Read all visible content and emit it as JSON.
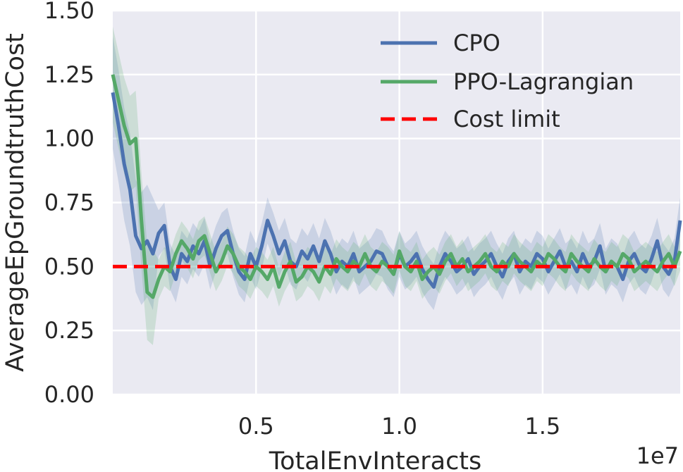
{
  "chart_data": {
    "type": "line",
    "title": "",
    "xlabel": "TotalEnvInteracts",
    "ylabel": "AverageEpGroundtruthCost",
    "x_offset_label": "1e7",
    "xlim": [
      0.0,
      1.98
    ],
    "ylim": [
      0.0,
      1.5
    ],
    "x_ticks": [
      0.5,
      1.0,
      1.5
    ],
    "x_tick_labels": [
      "0.5",
      "1.0",
      "1.5"
    ],
    "y_ticks": [
      0.0,
      0.25,
      0.5,
      0.75,
      1.0,
      1.25,
      1.5
    ],
    "y_tick_labels": [
      "0.00",
      "0.25",
      "0.50",
      "0.75",
      "1.00",
      "1.25",
      "1.50"
    ],
    "grid": true,
    "legend_position": "top-right",
    "colors": {
      "background": "#eaeaf2",
      "grid": "#ffffff",
      "cpo": "#4c72b0",
      "ppo": "#55a868",
      "limit": "#ff0000"
    },
    "series": [
      {
        "name": "CPO",
        "x": [
          0.0,
          0.02,
          0.04,
          0.06,
          0.08,
          0.1,
          0.12,
          0.14,
          0.16,
          0.18,
          0.2,
          0.22,
          0.24,
          0.26,
          0.28,
          0.3,
          0.32,
          0.34,
          0.36,
          0.38,
          0.4,
          0.42,
          0.44,
          0.46,
          0.48,
          0.5,
          0.52,
          0.54,
          0.56,
          0.58,
          0.6,
          0.62,
          0.64,
          0.66,
          0.68,
          0.7,
          0.72,
          0.74,
          0.76,
          0.78,
          0.8,
          0.82,
          0.84,
          0.86,
          0.88,
          0.9,
          0.92,
          0.94,
          0.96,
          0.98,
          1.0,
          1.02,
          1.04,
          1.06,
          1.08,
          1.1,
          1.12,
          1.14,
          1.16,
          1.18,
          1.2,
          1.22,
          1.24,
          1.26,
          1.28,
          1.3,
          1.32,
          1.34,
          1.36,
          1.38,
          1.4,
          1.42,
          1.44,
          1.46,
          1.48,
          1.5,
          1.52,
          1.54,
          1.56,
          1.58,
          1.6,
          1.62,
          1.64,
          1.66,
          1.68,
          1.7,
          1.72,
          1.74,
          1.76,
          1.78,
          1.8,
          1.82,
          1.84,
          1.86,
          1.88,
          1.9,
          1.92,
          1.94,
          1.96,
          1.98
        ],
        "values": [
          1.18,
          1.05,
          0.9,
          0.8,
          0.62,
          0.57,
          0.6,
          0.55,
          0.63,
          0.66,
          0.5,
          0.45,
          0.55,
          0.52,
          0.58,
          0.55,
          0.6,
          0.5,
          0.57,
          0.62,
          0.64,
          0.55,
          0.48,
          0.45,
          0.55,
          0.5,
          0.58,
          0.68,
          0.62,
          0.55,
          0.6,
          0.52,
          0.5,
          0.56,
          0.53,
          0.58,
          0.52,
          0.6,
          0.55,
          0.48,
          0.52,
          0.5,
          0.55,
          0.48,
          0.5,
          0.52,
          0.56,
          0.55,
          0.5,
          0.47,
          0.55,
          0.5,
          0.52,
          0.55,
          0.49,
          0.45,
          0.42,
          0.5,
          0.55,
          0.52,
          0.48,
          0.5,
          0.53,
          0.47,
          0.5,
          0.52,
          0.55,
          0.5,
          0.46,
          0.52,
          0.55,
          0.48,
          0.52,
          0.5,
          0.55,
          0.53,
          0.48,
          0.52,
          0.56,
          0.5,
          0.52,
          0.48,
          0.55,
          0.5,
          0.52,
          0.58,
          0.48,
          0.52,
          0.5,
          0.45,
          0.52,
          0.55,
          0.5,
          0.48,
          0.53,
          0.6,
          0.5,
          0.47,
          0.52,
          0.68
        ]
      },
      {
        "name": "PPO-Lagrangian",
        "x": [
          0.0,
          0.02,
          0.04,
          0.06,
          0.08,
          0.1,
          0.12,
          0.14,
          0.16,
          0.18,
          0.2,
          0.22,
          0.24,
          0.26,
          0.28,
          0.3,
          0.32,
          0.34,
          0.36,
          0.38,
          0.4,
          0.42,
          0.44,
          0.46,
          0.48,
          0.5,
          0.52,
          0.54,
          0.56,
          0.58,
          0.6,
          0.62,
          0.64,
          0.66,
          0.68,
          0.7,
          0.72,
          0.74,
          0.76,
          0.78,
          0.8,
          0.82,
          0.84,
          0.86,
          0.88,
          0.9,
          0.92,
          0.94,
          0.96,
          0.98,
          1.0,
          1.02,
          1.04,
          1.06,
          1.08,
          1.1,
          1.12,
          1.14,
          1.16,
          1.18,
          1.2,
          1.22,
          1.24,
          1.26,
          1.28,
          1.3,
          1.32,
          1.34,
          1.36,
          1.38,
          1.4,
          1.42,
          1.44,
          1.46,
          1.48,
          1.5,
          1.52,
          1.54,
          1.56,
          1.58,
          1.6,
          1.62,
          1.64,
          1.66,
          1.68,
          1.7,
          1.72,
          1.74,
          1.76,
          1.78,
          1.8,
          1.82,
          1.84,
          1.86,
          1.88,
          1.9,
          1.92,
          1.94,
          1.96,
          1.98
        ],
        "values": [
          1.25,
          1.15,
          1.05,
          0.98,
          1.0,
          0.68,
          0.4,
          0.38,
          0.45,
          0.5,
          0.48,
          0.55,
          0.6,
          0.57,
          0.53,
          0.6,
          0.62,
          0.55,
          0.48,
          0.52,
          0.58,
          0.55,
          0.5,
          0.48,
          0.45,
          0.5,
          0.48,
          0.45,
          0.5,
          0.42,
          0.48,
          0.52,
          0.44,
          0.46,
          0.5,
          0.48,
          0.44,
          0.5,
          0.47,
          0.53,
          0.5,
          0.48,
          0.52,
          0.5,
          0.55,
          0.5,
          0.48,
          0.52,
          0.5,
          0.47,
          0.56,
          0.5,
          0.48,
          0.52,
          0.45,
          0.48,
          0.5,
          0.47,
          0.52,
          0.55,
          0.5,
          0.53,
          0.48,
          0.5,
          0.52,
          0.55,
          0.5,
          0.48,
          0.52,
          0.5,
          0.55,
          0.52,
          0.5,
          0.48,
          0.52,
          0.5,
          0.55,
          0.53,
          0.5,
          0.48,
          0.55,
          0.52,
          0.5,
          0.48,
          0.53,
          0.5,
          0.48,
          0.52,
          0.5,
          0.55,
          0.53,
          0.48,
          0.5,
          0.52,
          0.5,
          0.48,
          0.52,
          0.55,
          0.5,
          0.56
        ]
      },
      {
        "name": "Cost limit",
        "x": [
          0.0,
          1.98
        ],
        "values": [
          0.5,
          0.5
        ]
      }
    ]
  }
}
